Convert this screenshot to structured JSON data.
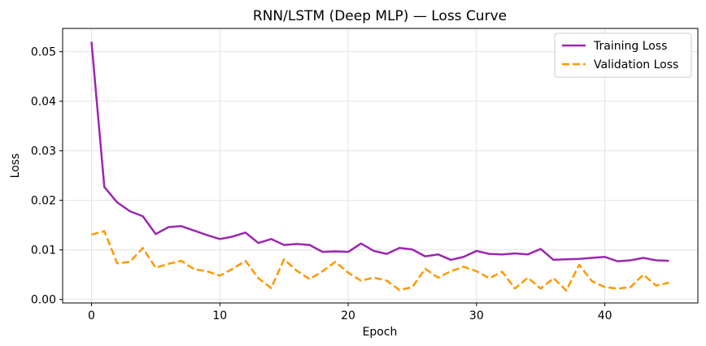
{
  "chart_data": {
    "type": "line",
    "title": "RNN/LSTM (Deep MLP) — Loss Curve",
    "xlabel": "Epoch",
    "ylabel": "Loss",
    "xlim": [
      -2.25,
      47.25
    ],
    "ylim": [
      -0.0007,
      0.0547
    ],
    "xticks": [
      0,
      10,
      20,
      30,
      40
    ],
    "yticks": [
      0.0,
      0.01,
      0.02,
      0.03,
      0.04,
      0.05
    ],
    "ytick_labels": [
      "0.00",
      "0.01",
      "0.02",
      "0.03",
      "0.04",
      "0.05"
    ],
    "grid": true,
    "legend_position": "top-right",
    "x": [
      0,
      1,
      2,
      3,
      4,
      5,
      6,
      7,
      8,
      9,
      10,
      11,
      12,
      13,
      14,
      15,
      16,
      17,
      18,
      19,
      20,
      21,
      22,
      23,
      24,
      25,
      26,
      27,
      28,
      29,
      30,
      31,
      32,
      33,
      34,
      35,
      36,
      37,
      38,
      39,
      40,
      41,
      42,
      43,
      44,
      45
    ],
    "series": [
      {
        "name": "Training Loss",
        "color": "#9c27b0",
        "style": "solid",
        "values": [
          0.052,
          0.0227,
          0.0196,
          0.0178,
          0.0168,
          0.0132,
          0.0146,
          0.0148,
          0.0139,
          0.013,
          0.0122,
          0.0127,
          0.0135,
          0.0114,
          0.0122,
          0.011,
          0.0112,
          0.011,
          0.0096,
          0.0097,
          0.0096,
          0.0113,
          0.0098,
          0.0092,
          0.0104,
          0.0101,
          0.0087,
          0.0091,
          0.008,
          0.0086,
          0.0098,
          0.0092,
          0.0091,
          0.0093,
          0.0091,
          0.0102,
          0.008,
          0.0081,
          0.0082,
          0.0084,
          0.0086,
          0.0077,
          0.0079,
          0.0084,
          0.0079,
          0.0078
        ]
      },
      {
        "name": "Validation Loss",
        "color": "#ff9800",
        "style": "dashed",
        "values": [
          0.0131,
          0.0138,
          0.0073,
          0.0076,
          0.0104,
          0.0064,
          0.0072,
          0.0078,
          0.0061,
          0.0057,
          0.0048,
          0.0062,
          0.0078,
          0.0043,
          0.0023,
          0.0081,
          0.0058,
          0.0041,
          0.0057,
          0.0076,
          0.0054,
          0.0038,
          0.0044,
          0.0038,
          0.0019,
          0.0025,
          0.0062,
          0.0044,
          0.0057,
          0.0066,
          0.0057,
          0.0043,
          0.0056,
          0.0022,
          0.0044,
          0.0022,
          0.0043,
          0.0018,
          0.007,
          0.0037,
          0.0025,
          0.0022,
          0.0025,
          0.005,
          0.0028,
          0.0034
        ]
      }
    ]
  }
}
